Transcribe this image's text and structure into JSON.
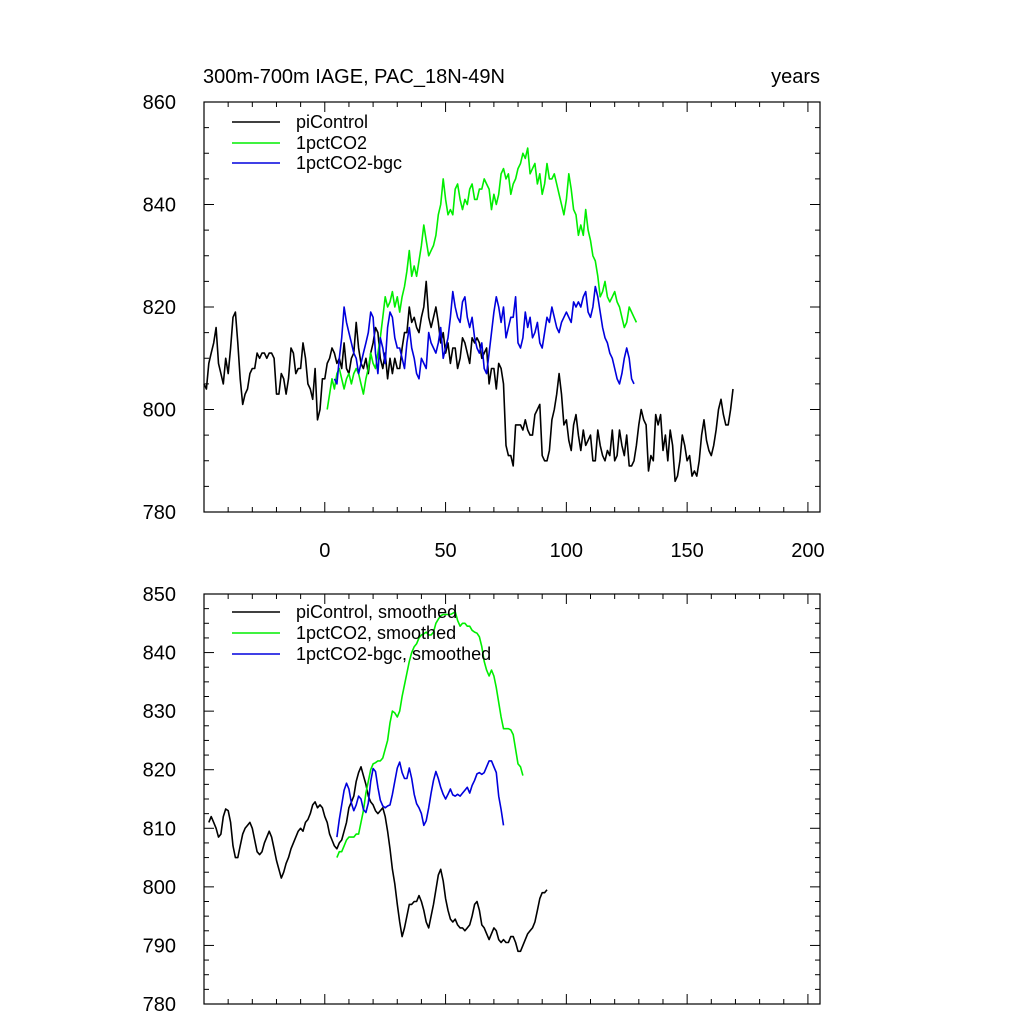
{
  "chart_data": [
    {
      "type": "line",
      "title": "300m-700m IAGE, PAC_18N-49N",
      "units_label": "years",
      "xlim": [
        -50,
        205
      ],
      "ylim": [
        780,
        860
      ],
      "xticks": [
        0,
        50,
        100,
        150,
        200
      ],
      "yticks": [
        780,
        800,
        820,
        840,
        860
      ],
      "colors": {
        "piControl": "#000000",
        "1pctCO2": "#00ee00",
        "1pctCO2-bgc": "#0000dd"
      },
      "series": [
        {
          "name": "piControl",
          "color": "#000000",
          "start": -50,
          "values": [
            805,
            804,
            809,
            811,
            813,
            816,
            809,
            807,
            805,
            810,
            807,
            812,
            818,
            819,
            813,
            806,
            801,
            803,
            804,
            807,
            808,
            808,
            811,
            810,
            811,
            811,
            810,
            811,
            811,
            810,
            803,
            803,
            807,
            806,
            803,
            806,
            812,
            811,
            807,
            808,
            808,
            813,
            810,
            805,
            804,
            802,
            808,
            798,
            800,
            806,
            806,
            809,
            810,
            812,
            811,
            809,
            810,
            808,
            813,
            808,
            807,
            810,
            811,
            817,
            812,
            809,
            808,
            810,
            807,
            811,
            813,
            816,
            815,
            810,
            808,
            811,
            806,
            810,
            807,
            810,
            808,
            808,
            812,
            815,
            815,
            820,
            817,
            818,
            816,
            815,
            818,
            820,
            825,
            818,
            816,
            818,
            820,
            817,
            813,
            815,
            811,
            813,
            809,
            812,
            812,
            808,
            810,
            814,
            813,
            811,
            809,
            814,
            813,
            814,
            813,
            810,
            811,
            812,
            805,
            808,
            808,
            804,
            809,
            808,
            805,
            793,
            791,
            791,
            789,
            797,
            797,
            797,
            796,
            798,
            796,
            795,
            795,
            799,
            800,
            801,
            791,
            790,
            790,
            792,
            798,
            800,
            803,
            807,
            803,
            797,
            798,
            794,
            792,
            797,
            799,
            795,
            792,
            796,
            793,
            794,
            795,
            790,
            790,
            796,
            793,
            791,
            790,
            792,
            791,
            796,
            790,
            791,
            796,
            793,
            791,
            795,
            789,
            789,
            790,
            793,
            797,
            800,
            798,
            797,
            788,
            791,
            790,
            799,
            797,
            799,
            792,
            795,
            790,
            796,
            793,
            786,
            787,
            790,
            795,
            793,
            790,
            791,
            787,
            788,
            787,
            790,
            795,
            798,
            794,
            792,
            791,
            793,
            796,
            800,
            802,
            799,
            797,
            797,
            800,
            804
          ]
        },
        {
          "name": "1pctCO2",
          "color": "#00ee00",
          "start": 1,
          "values": [
            800,
            803,
            806,
            804,
            807,
            808,
            806,
            804,
            806,
            807,
            805,
            807,
            808,
            807,
            805,
            803,
            806,
            808,
            811,
            809,
            808,
            811,
            814,
            818,
            822,
            820,
            821,
            823,
            820,
            822,
            819,
            822,
            824,
            827,
            831,
            826,
            828,
            826,
            829,
            832,
            836,
            833,
            830,
            831,
            832,
            834,
            838,
            840,
            845,
            841,
            838,
            839,
            838,
            843,
            844,
            841,
            839,
            841,
            840,
            843,
            844,
            841,
            841,
            843,
            843,
            845,
            844,
            843,
            839,
            842,
            840,
            842,
            846,
            847,
            845,
            846,
            842,
            844,
            845,
            847,
            848,
            850,
            849,
            851,
            846,
            847,
            848,
            844,
            846,
            842,
            844,
            848,
            845,
            845,
            846,
            844,
            842,
            840,
            838,
            841,
            846,
            843,
            839,
            838,
            834,
            836,
            834,
            839,
            835,
            833,
            830,
            829,
            826,
            822,
            823,
            825,
            822,
            821,
            822,
            823,
            821,
            820,
            818,
            816,
            817,
            820,
            819,
            818,
            817
          ]
        },
        {
          "name": "1pctCO2-bgc",
          "color": "#0000dd",
          "start": 4,
          "values": [
            806,
            805,
            810,
            814,
            820,
            817,
            815,
            813,
            811,
            810,
            807,
            809,
            811,
            813,
            815,
            819,
            818,
            811,
            807,
            814,
            812,
            809,
            816,
            819,
            818,
            814,
            812,
            812,
            810,
            808,
            813,
            816,
            812,
            810,
            807,
            806,
            810,
            809,
            808,
            815,
            813,
            812,
            811,
            813,
            816,
            810,
            812,
            814,
            818,
            823,
            820,
            818,
            817,
            821,
            822,
            818,
            816,
            818,
            814,
            812,
            811,
            813,
            808,
            807,
            811,
            815,
            819,
            822,
            820,
            817,
            820,
            814,
            816,
            818,
            818,
            822,
            813,
            812,
            814,
            819,
            816,
            818,
            814,
            815,
            817,
            813,
            812,
            815,
            818,
            817,
            820,
            818,
            816,
            815,
            817,
            818,
            819,
            818,
            817,
            821,
            820,
            821,
            820,
            822,
            823,
            819,
            818,
            820,
            824,
            822,
            819,
            816,
            814,
            813,
            811,
            810,
            808,
            806,
            805,
            807,
            810,
            812,
            810,
            806,
            805
          ]
        }
      ],
      "legend": [
        "piControl",
        "1pctCO2",
        "1pctCO2-bgc"
      ]
    },
    {
      "type": "line",
      "title": "",
      "xlim": [
        -50,
        205
      ],
      "ylim": [
        780,
        850
      ],
      "xticks": [
        0,
        50,
        100,
        150,
        200
      ],
      "yticks": [
        780,
        790,
        800,
        810,
        820,
        830,
        840,
        850
      ],
      "series": [
        {
          "name": "piControl, smoothed",
          "color": "#000000",
          "start": -48,
          "values": [
            811,
            812,
            811,
            810,
            808.5,
            809,
            812,
            813.3,
            813,
            811,
            807,
            805,
            805,
            807,
            809,
            810,
            810.5,
            811,
            810,
            808,
            806,
            805.5,
            806,
            807.5,
            808.5,
            809.5,
            808.5,
            806.5,
            804.5,
            803,
            801.5,
            802.5,
            804,
            805,
            806.5,
            807.5,
            808.5,
            809.5,
            810,
            809.5,
            811,
            811.5,
            812.5,
            814,
            814.5,
            813.5,
            814,
            813.5,
            812,
            811,
            809,
            808,
            807,
            806.5,
            807.5,
            808,
            809.5,
            811,
            813.5,
            814.5,
            815.5,
            818,
            819.5,
            820.5,
            819,
            817.5,
            815.5,
            814.5,
            814,
            813,
            812.5,
            813,
            813.5,
            812,
            809.5,
            806.5,
            803,
            800.5,
            797,
            794,
            791.5,
            793,
            795,
            797,
            797,
            797.5,
            797.5,
            798.5,
            797.5,
            796,
            794,
            793,
            795,
            797,
            799.5,
            802,
            803,
            801,
            798,
            796,
            794.5,
            794,
            794.5,
            793.5,
            793,
            793,
            792.5,
            793,
            793.5,
            795,
            797,
            797.5,
            796,
            793.5,
            793,
            792,
            791,
            792,
            793,
            792.5,
            791,
            790.5,
            791,
            790.5,
            790.5,
            791.5,
            791.5,
            790.5,
            789,
            789,
            790,
            791,
            792,
            792.5,
            793,
            794,
            796,
            798,
            799,
            799,
            799.5
          ]
        },
        {
          "name": "1pctCO2, smoothed",
          "color": "#00ee00",
          "start": 5,
          "values": [
            805,
            806,
            806,
            807,
            808,
            808.5,
            808.5,
            808.5,
            809,
            809,
            811,
            813,
            816,
            818,
            820,
            821,
            821.2,
            821.5,
            821.5,
            822,
            823.5,
            825,
            828,
            830,
            829.7,
            829,
            830,
            832.5,
            834.5,
            836.5,
            838.5,
            840,
            841,
            841.5,
            842.5,
            843,
            843.2,
            843.5,
            843,
            843,
            843.5,
            845,
            845.7,
            846.3,
            846.5,
            846.5,
            846.5,
            846.5,
            846.7,
            847,
            845.5,
            844.5,
            845,
            845,
            844.5,
            844.5,
            843.8,
            843.5,
            843.3,
            842.7,
            841,
            838.5,
            837,
            836,
            837,
            836,
            834,
            831.5,
            829,
            827,
            827,
            827,
            826.8,
            826,
            823.5,
            821,
            820.5,
            819
          ]
        },
        {
          "name": "1pctCO2-bgc, smoothed",
          "color": "#0000dd",
          "start": 5,
          "values": [
            808.5,
            811.5,
            814,
            816.5,
            817.7,
            816.7,
            814.3,
            813,
            814,
            815.5,
            815,
            813.2,
            812.7,
            814.3,
            818,
            820.2,
            819.7,
            817,
            814.8,
            813.8,
            813.5,
            813.8,
            814,
            815.8,
            818,
            820.3,
            821.3,
            819.5,
            818.5,
            818.5,
            820.3,
            818.5,
            815.8,
            814.2,
            813.5,
            812.5,
            810.5,
            811.3,
            813.5,
            816,
            818.2,
            819.7,
            818.5,
            817,
            815.8,
            815,
            815.8,
            816.7,
            815.7,
            815.5,
            815.8,
            815.5,
            816,
            816.5,
            817,
            816,
            817.3,
            818.2,
            819.3,
            819.5,
            819.2,
            819.5,
            820.5,
            821.5,
            821.5,
            820.5,
            819.5,
            815.5,
            813.2,
            810.5
          ]
        }
      ],
      "legend": [
        "piControl, smoothed",
        "1pctCO2, smoothed",
        "1pctCO2-bgc, smoothed"
      ]
    }
  ]
}
